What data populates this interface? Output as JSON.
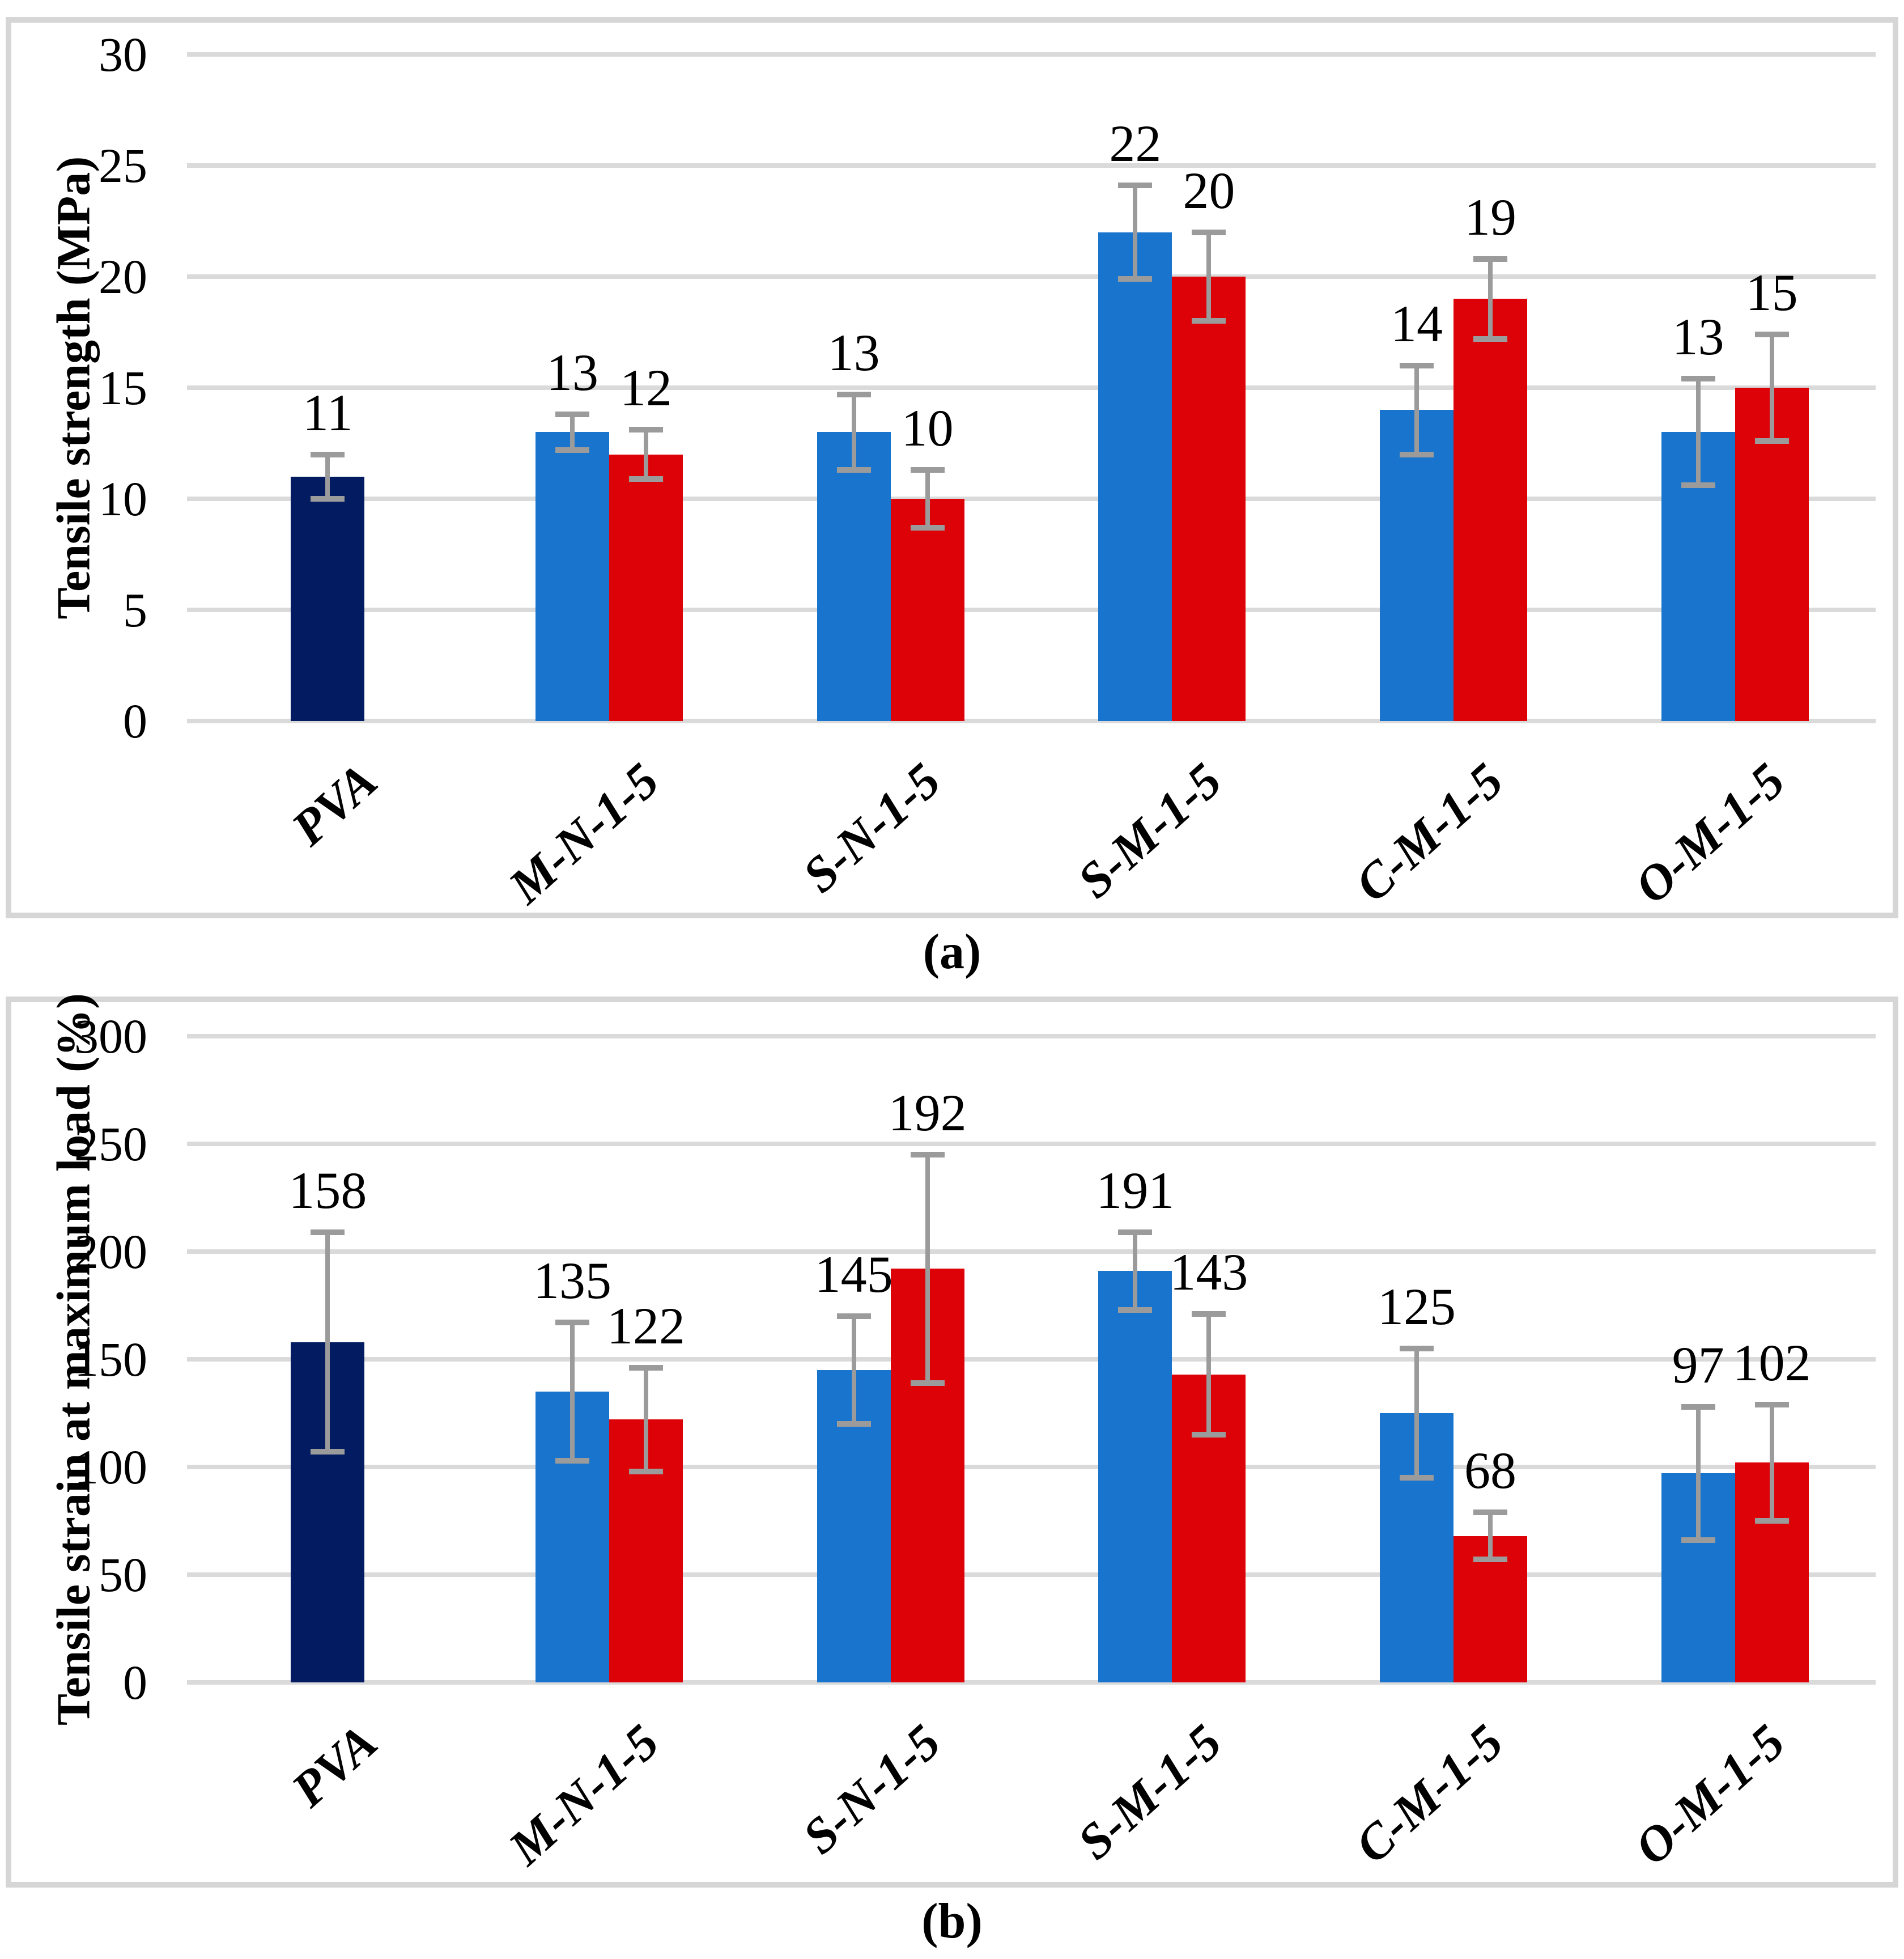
{
  "captions": {
    "a": "(a)",
    "b": "(b)"
  },
  "palette": {
    "navy": "#021B61",
    "blue": "#1874CC",
    "red": "#DD0207",
    "error_bar": "#9B9B9B",
    "gridline": "#DADADA",
    "panel_border": "#D6D6D6"
  },
  "chart_data": [
    {
      "type": "bar",
      "panel": "a",
      "title": "",
      "xlabel": "",
      "ylabel": "Tensile strength (MPa)",
      "ylim": [
        0,
        30
      ],
      "yticks": [
        0,
        5,
        10,
        15,
        20,
        25,
        30
      ],
      "grid": true,
      "legend": null,
      "categories": [
        "PVA",
        "M-N-1-5",
        "S-N-1-5",
        "S-M-1-5",
        "C-M-1-5",
        "O-M-1-5"
      ],
      "groups": [
        {
          "category": "PVA",
          "bars": [
            {
              "series": "navy",
              "value": 11,
              "error": 1.0
            }
          ]
        },
        {
          "category": "M-N-1-5",
          "bars": [
            {
              "series": "blue",
              "value": 13,
              "error": 0.8
            },
            {
              "series": "red",
              "value": 12,
              "error": 1.1
            }
          ]
        },
        {
          "category": "S-N-1-5",
          "bars": [
            {
              "series": "blue",
              "value": 13,
              "error": 1.7
            },
            {
              "series": "red",
              "value": 10,
              "error": 1.3
            }
          ]
        },
        {
          "category": "S-M-1-5",
          "bars": [
            {
              "series": "blue",
              "value": 22,
              "error": 2.1
            },
            {
              "series": "red",
              "value": 20,
              "error": 2.0
            }
          ]
        },
        {
          "category": "C-M-1-5",
          "bars": [
            {
              "series": "blue",
              "value": 14,
              "error": 2.0
            },
            {
              "series": "red",
              "value": 19,
              "error": 1.8
            }
          ]
        },
        {
          "category": "O-M-1-5",
          "bars": [
            {
              "series": "blue",
              "value": 13,
              "error": 2.4
            },
            {
              "series": "red",
              "value": 15,
              "error": 2.4
            }
          ]
        }
      ]
    },
    {
      "type": "bar",
      "panel": "b",
      "title": "",
      "xlabel": "",
      "ylabel": "Tensile strain at maximum load (%)",
      "ylim": [
        0,
        300
      ],
      "yticks": [
        0,
        50,
        100,
        150,
        200,
        250,
        300
      ],
      "grid": true,
      "legend": null,
      "categories": [
        "PVA",
        "M-N-1-5",
        "S-N-1-5",
        "S-M-1-5",
        "C-M-1-5",
        "O-M-1-5"
      ],
      "groups": [
        {
          "category": "PVA",
          "bars": [
            {
              "series": "navy",
              "value": 158,
              "error": 51
            }
          ]
        },
        {
          "category": "M-N-1-5",
          "bars": [
            {
              "series": "blue",
              "value": 135,
              "error": 32
            },
            {
              "series": "red",
              "value": 122,
              "error": 24
            }
          ]
        },
        {
          "category": "S-N-1-5",
          "bars": [
            {
              "series": "blue",
              "value": 145,
              "error": 25
            },
            {
              "series": "red",
              "value": 192,
              "error": 53
            }
          ]
        },
        {
          "category": "S-M-1-5",
          "bars": [
            {
              "series": "blue",
              "value": 191,
              "error": 18
            },
            {
              "series": "red",
              "value": 143,
              "error": 28
            }
          ]
        },
        {
          "category": "C-M-1-5",
          "bars": [
            {
              "series": "blue",
              "value": 125,
              "error": 30
            },
            {
              "series": "red",
              "value": 68,
              "error": 11
            }
          ]
        },
        {
          "category": "O-M-1-5",
          "bars": [
            {
              "series": "blue",
              "value": 97,
              "error": 31
            },
            {
              "series": "red",
              "value": 102,
              "error": 27
            }
          ]
        }
      ]
    }
  ]
}
